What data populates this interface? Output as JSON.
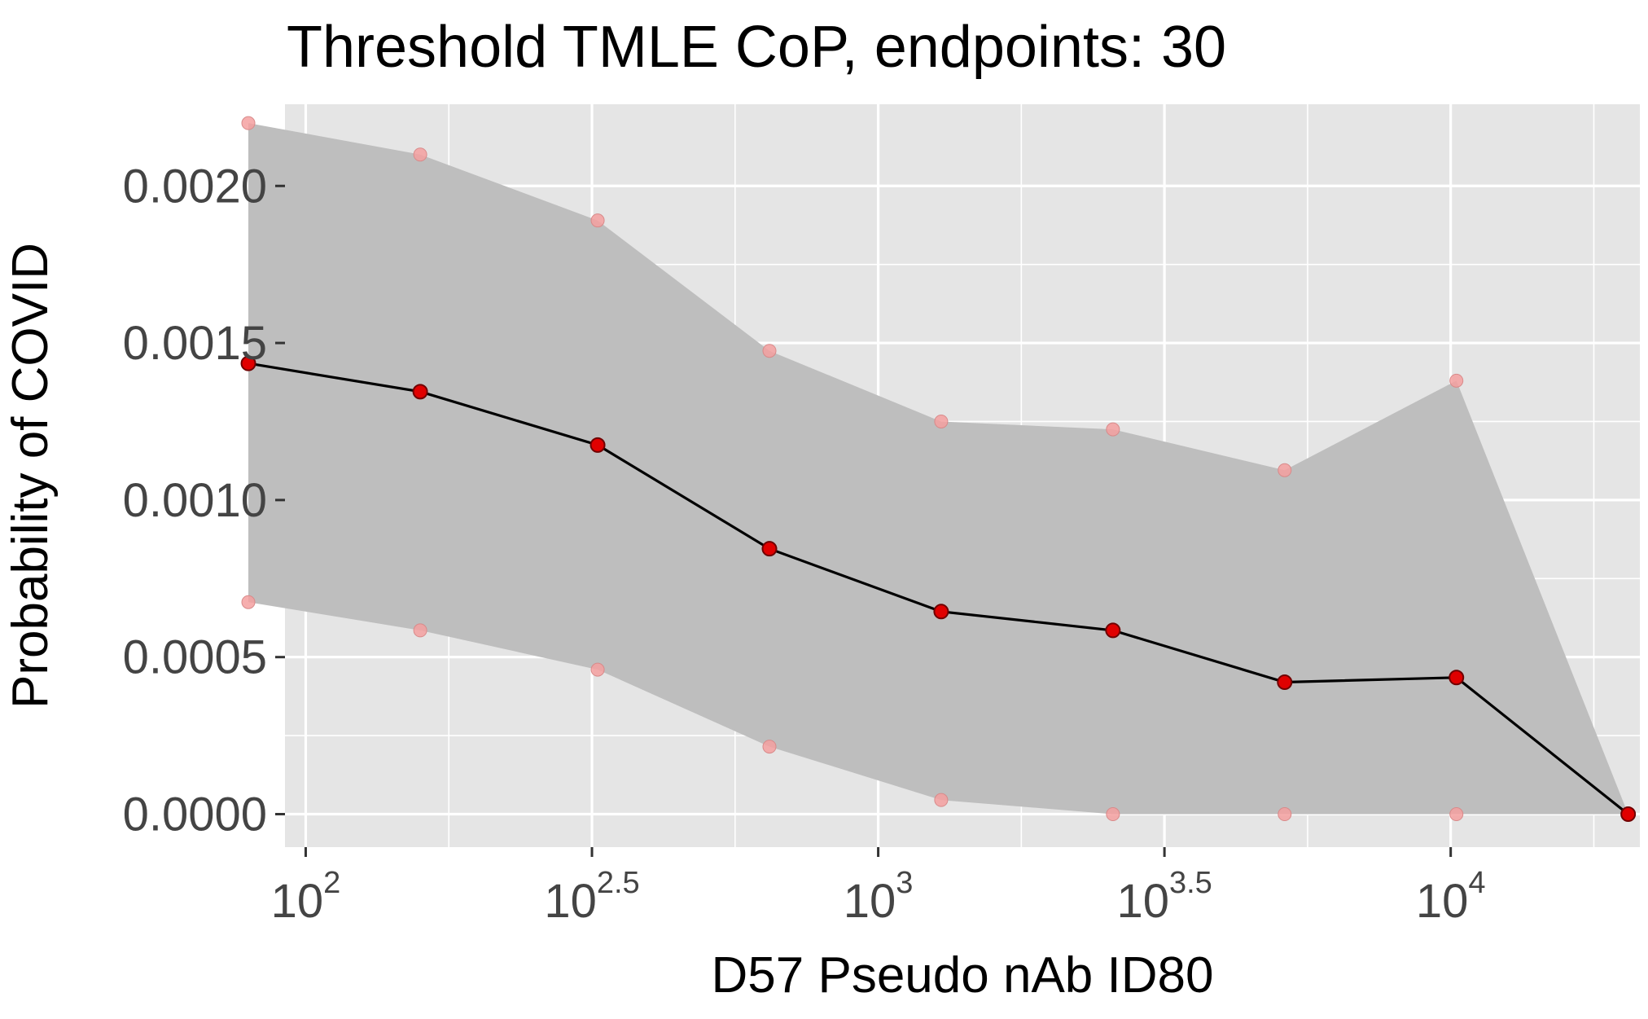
{
  "chart_data": {
    "type": "line",
    "title": "Threshold TMLE CoP, endpoints: 30",
    "xlabel": "D57 Pseudo nAb ID80",
    "ylabel": "Probability of COVID",
    "x_scale": "log10",
    "x_unit": "ID80",
    "xlim": [
      92,
      21400
    ],
    "ylim": [
      -0.000105,
      0.00226
    ],
    "x_ticks": [
      {
        "value": 100,
        "base": "10",
        "exp": "2"
      },
      {
        "value": 316.23,
        "base": "10",
        "exp": "2.5"
      },
      {
        "value": 1000,
        "base": "10",
        "exp": "3"
      },
      {
        "value": 3162.28,
        "base": "10",
        "exp": "3.5"
      },
      {
        "value": 10000,
        "base": "10",
        "exp": "4"
      }
    ],
    "y_ticks": [
      {
        "value": 0.0,
        "label": "0.0000"
      },
      {
        "value": 0.0005,
        "label": "0.0005"
      },
      {
        "value": 0.001,
        "label": "0.0010"
      },
      {
        "value": 0.0015,
        "label": "0.0015"
      },
      {
        "value": 0.002,
        "label": "0.0020"
      }
    ],
    "x": [
      79.4,
      158.5,
      323.6,
      645.7,
      1288.2,
      2570.4,
      5128.6,
      10232.9,
      20417.4
    ],
    "series": [
      {
        "role": "estimate",
        "values": [
          0.001435,
          0.001345,
          0.001175,
          0.000845,
          0.000645,
          0.000585,
          0.00042,
          0.000435,
          0.0
        ]
      },
      {
        "role": "upper_ci",
        "values": [
          0.0022,
          0.0021,
          0.00189,
          0.001475,
          0.00125,
          0.001225,
          0.001095,
          0.00138,
          0.0
        ]
      },
      {
        "role": "lower_ci",
        "values": [
          0.000675,
          0.000585,
          0.00046,
          0.000215,
          4.5e-05,
          0.0,
          0.0,
          0.0,
          0.0
        ]
      }
    ],
    "grid": true,
    "legend": "none",
    "colors": {
      "panel": "#e5e5e5",
      "grid": "#ffffff",
      "band": "#bebebe",
      "line": "#000000",
      "point": "#e00000",
      "ci_point": "#f4a0a0"
    }
  }
}
